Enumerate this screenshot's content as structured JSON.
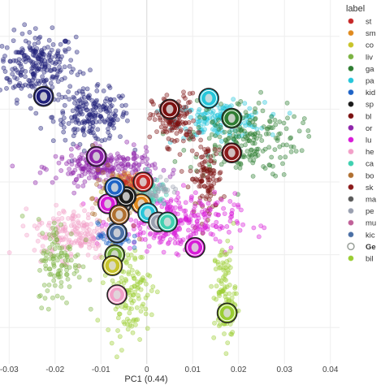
{
  "chart_data": {
    "type": "scatter",
    "xlabel": "PC1 (0.44)",
    "xlim": [
      -0.032,
      0.042
    ],
    "ylim": [
      -0.1,
      0.1
    ],
    "xticks": [
      {
        "value": -0.03,
        "label": "-0.03"
      },
      {
        "value": -0.02,
        "label": "-0.02"
      },
      {
        "value": -0.01,
        "label": "-0.01"
      },
      {
        "value": 0,
        "label": "0"
      },
      {
        "value": 0.01,
        "label": "0.01"
      },
      {
        "value": 0.02,
        "label": "0.02"
      },
      {
        "value": 0.03,
        "label": "0.03"
      },
      {
        "value": 0.04,
        "label": "0.04"
      }
    ],
    "grid": true,
    "legend": {
      "title": "label",
      "placement": "right",
      "entries": [
        {
          "label": "st",
          "color": "#c62828",
          "marker": "dot"
        },
        {
          "label": "sm",
          "color": "#e08a1e",
          "marker": "dot"
        },
        {
          "label": "co",
          "color": "#c8c42a",
          "marker": "dot"
        },
        {
          "label": "liv",
          "color": "#7cb342",
          "marker": "dot"
        },
        {
          "label": "ga",
          "color": "#2e7d32",
          "marker": "dot"
        },
        {
          "label": "pa",
          "color": "#26c6da",
          "marker": "dot"
        },
        {
          "label": "kid",
          "color": "#1e63c6",
          "marker": "dot"
        },
        {
          "label": "sp",
          "color": "#1a1a1a",
          "marker": "dot"
        },
        {
          "label": "bl",
          "color": "#7b1010",
          "marker": "dot"
        },
        {
          "label": "or",
          "color": "#8e24aa",
          "marker": "dot"
        },
        {
          "label": "lu",
          "color": "#d81bd8",
          "marker": "dot"
        },
        {
          "label": "he",
          "color": "#f2a0c8",
          "marker": "dot"
        },
        {
          "label": "ca",
          "color": "#3fd0b0",
          "marker": "dot"
        },
        {
          "label": "bo",
          "color": "#b07030",
          "marker": "dot"
        },
        {
          "label": "sk",
          "color": "#8b1a1a",
          "marker": "dot"
        },
        {
          "label": "ma",
          "color": "#5a5a5a",
          "marker": "dot"
        },
        {
          "label": "pe",
          "color": "#9aa0b0",
          "marker": "dot"
        },
        {
          "label": "mu",
          "color": "#c06098",
          "marker": "dot"
        },
        {
          "label": "kic",
          "color": "#4a6fa5",
          "marker": "dot"
        },
        {
          "label": "Ge",
          "color": "#9aa09a",
          "marker": "ring",
          "bold": true
        },
        {
          "label": "bil",
          "color": "#9acd32",
          "marker": "dot"
        }
      ]
    },
    "clusters": [
      {
        "color": "#1f1f7a",
        "center": [
          -0.024,
          0.064
        ],
        "spread": [
          0.007,
          0.015
        ],
        "count": 240
      },
      {
        "color": "#1f1f7a",
        "center": [
          -0.012,
          0.036
        ],
        "spread": [
          0.007,
          0.012
        ],
        "count": 200
      },
      {
        "color": "#26c6da",
        "center": [
          0.016,
          0.034
        ],
        "spread": [
          0.008,
          0.008
        ],
        "count": 170
      },
      {
        "color": "#2e7d32",
        "center": [
          0.021,
          0.024
        ],
        "spread": [
          0.01,
          0.018
        ],
        "count": 210
      },
      {
        "color": "#7b1010",
        "center": [
          0.006,
          0.034
        ],
        "spread": [
          0.004,
          0.012
        ],
        "count": 130
      },
      {
        "color": "#7b1010",
        "center": [
          0.013,
          0.002
        ],
        "spread": [
          0.003,
          0.016
        ],
        "count": 110
      },
      {
        "color": "#8e24aa",
        "center": [
          -0.009,
          0.008
        ],
        "spread": [
          0.009,
          0.008
        ],
        "count": 250
      },
      {
        "color": "#d81bd8",
        "center": [
          0.006,
          -0.022
        ],
        "spread": [
          0.011,
          0.013
        ],
        "count": 280
      },
      {
        "color": "#f2a0c8",
        "center": [
          -0.016,
          -0.028
        ],
        "spread": [
          0.007,
          0.012
        ],
        "count": 170
      },
      {
        "color": "#7cb342",
        "center": [
          -0.019,
          -0.044
        ],
        "spread": [
          0.004,
          0.02
        ],
        "count": 110
      },
      {
        "color": "#9acd32",
        "center": [
          -0.004,
          -0.06
        ],
        "spread": [
          0.004,
          0.02
        ],
        "count": 130
      },
      {
        "color": "#9acd32",
        "center": [
          0.017,
          -0.062
        ],
        "spread": [
          0.002,
          0.024
        ],
        "count": 110
      },
      {
        "color": "#b07030",
        "center": [
          -0.007,
          -0.01
        ],
        "spread": [
          0.004,
          0.014
        ],
        "count": 110
      },
      {
        "color": "#3fd0b0",
        "center": [
          -0.001,
          -0.006
        ],
        "spread": [
          0.005,
          0.006
        ],
        "count": 90
      },
      {
        "color": "#1e63c6",
        "center": [
          -0.007,
          -0.03
        ],
        "spread": [
          0.003,
          0.006
        ],
        "count": 50
      },
      {
        "color": "#c8c42a",
        "center": [
          -0.006,
          -0.004
        ],
        "spread": [
          0.003,
          0.005
        ],
        "count": 50
      },
      {
        "color": "#9aa0b0",
        "center": [
          0.001,
          -0.004
        ],
        "spread": [
          0.005,
          0.005
        ],
        "count": 60
      },
      {
        "color": "#e08a1e",
        "center": [
          -0.004,
          0.0
        ],
        "spread": [
          0.003,
          0.004
        ],
        "count": 40
      },
      {
        "color": "#c62828",
        "center": [
          -0.003,
          0.0
        ],
        "spread": [
          0.003,
          0.004
        ],
        "count": 40
      }
    ],
    "centroids": [
      {
        "x": -0.0225,
        "y": 0.047,
        "color": "#1f1f7a"
      },
      {
        "x": -0.011,
        "y": 0.014,
        "color": "#8e24aa"
      },
      {
        "x": 0.005,
        "y": 0.04,
        "color": "#7b1010"
      },
      {
        "x": 0.0135,
        "y": 0.046,
        "color": "#26c6da"
      },
      {
        "x": 0.0185,
        "y": 0.035,
        "color": "#2e7d32"
      },
      {
        "x": 0.0185,
        "y": 0.016,
        "color": "#8b1a1a"
      },
      {
        "x": -0.0008,
        "y": 0.0,
        "color": "#c62828"
      },
      {
        "x": -0.0012,
        "y": -0.012,
        "color": "#e08a1e"
      },
      {
        "x": -0.0055,
        "y": -0.012,
        "color": "#5a5a5a"
      },
      {
        "x": -0.0045,
        "y": -0.008,
        "color": "#1a1a1a"
      },
      {
        "x": -0.0085,
        "y": -0.012,
        "color": "#d81bd8"
      },
      {
        "x": -0.007,
        "y": -0.003,
        "color": "#1e63c6"
      },
      {
        "x": -0.0065,
        "y": -0.028,
        "color": "#4a6fa5"
      },
      {
        "x": -0.007,
        "y": -0.04,
        "color": "#7cb342"
      },
      {
        "x": -0.0065,
        "y": -0.062,
        "color": "#f2a0c8"
      },
      {
        "x": -0.0075,
        "y": -0.046,
        "color": "#c8c42a"
      },
      {
        "x": -0.006,
        "y": -0.018,
        "color": "#b07030"
      },
      {
        "x": 0.0002,
        "y": -0.017,
        "color": "#26c6da"
      },
      {
        "x": 0.0025,
        "y": -0.022,
        "color": "#9aa0b0"
      },
      {
        "x": 0.0045,
        "y": -0.022,
        "color": "#3fd0b0"
      },
      {
        "x": 0.0105,
        "y": -0.036,
        "color": "#d81bd8"
      },
      {
        "x": 0.0175,
        "y": -0.072,
        "color": "#9acd32"
      }
    ]
  }
}
